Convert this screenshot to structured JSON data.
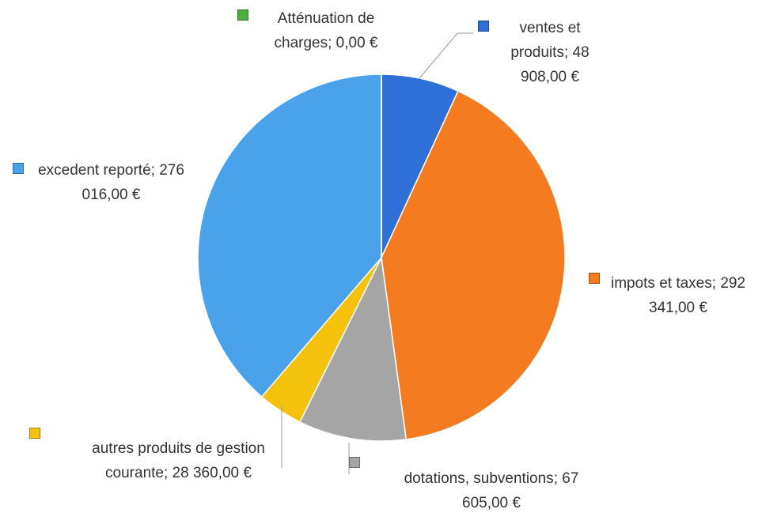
{
  "chart_data": {
    "type": "pie",
    "categories": [
      "ventes et produits",
      "impots et taxes",
      "dotations, subventions",
      "autres produits de gestion courante",
      "excedent reporté",
      "Atténuation de charges"
    ],
    "values": [
      48908,
      292341,
      67605,
      28360,
      276016,
      0
    ],
    "value_labels": [
      "48 908,00 €",
      "292 341,00 €",
      "67 605,00 €",
      "28 360,00 €",
      "276 016,00 €",
      "0,00 €"
    ],
    "label_separator": ";",
    "colors": [
      "#2e6fd8",
      "#f47b20",
      "#a5a5a5",
      "#f4c20d",
      "#4aa3ea",
      "#4caf3f"
    ],
    "start_angle": 0,
    "direction": "clockwise"
  }
}
